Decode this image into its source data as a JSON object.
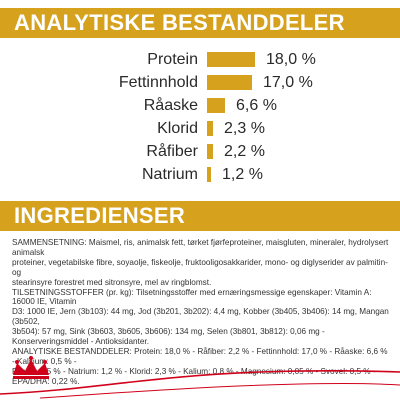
{
  "analysis": {
    "title": "ANALYTISKE BESTANDDELER",
    "rows": [
      {
        "label": "Protein",
        "value_text": "18,0 %",
        "percent": 18.0
      },
      {
        "label": "Fettinnhold",
        "value_text": "17,0 %",
        "percent": 17.0
      },
      {
        "label": "Råaske",
        "value_text": "6,6 %",
        "percent": 6.6
      },
      {
        "label": "Klorid",
        "value_text": "2,3 %",
        "percent": 2.3
      },
      {
        "label": "Råfiber",
        "value_text": "2,2 %",
        "percent": 2.2
      },
      {
        "label": "Natrium",
        "value_text": "1,2 %",
        "percent": 1.2
      }
    ]
  },
  "ingredients": {
    "title": "INGREDIENSER",
    "lines": [
      "SAMMENSETNING: Maismel, ris, animalsk fett, tørket fjørfeproteiner, maisgluten, mineraler, hydrolysert animalsk",
      "proteiner, vegetabilske fibre, soyaolje, fiskeolje, fruktooligosakkarider, mono- og diglyserider av palmitin- og",
      "stearinsyre forestret med sitronsyre, mel av ringblomst.",
      "TILSETNINGSSTOFFER (pr. kg): Tilsetningsstoffer med ernæringsmessige egenskaper: Vitamin A: 16000 IE, Vitamin",
      "D3: 1000 IE, Jern (3b103): 44 mg, Jod (3b201, 3b202): 4,4 mg, Kobber (3b405, 3b406): 14 mg, Mangan (3b502,",
      "3b504): 57 mg, Sink (3b603, 3b605, 3b606): 134 mg, Selen (3b801, 3b812): 0,06 mg - Konserveringsmiddel - Antioksidanter.",
      "ANALYTISKE BESTANDDELER: Protein: 18,0 % - Råfiber: 2,2 % - Fettinnhold: 17,0 % - Råaske: 6,6 % - Kalsium: 0,5 % -",
      "Fosfor: 0,5 % - Natrium: 1,2 % - Klorid: 2,3 % - Kalium: 0,8 % - Magnesium: 0,05 % - Svovel: 0,5 % - EPA/DHA: 0,22 %."
    ]
  },
  "colors": {
    "brand_gold": "#d6a21e",
    "brand_red": "#d0021b"
  },
  "brand": {
    "logo_icon": "royal-canin-crown-logo"
  }
}
